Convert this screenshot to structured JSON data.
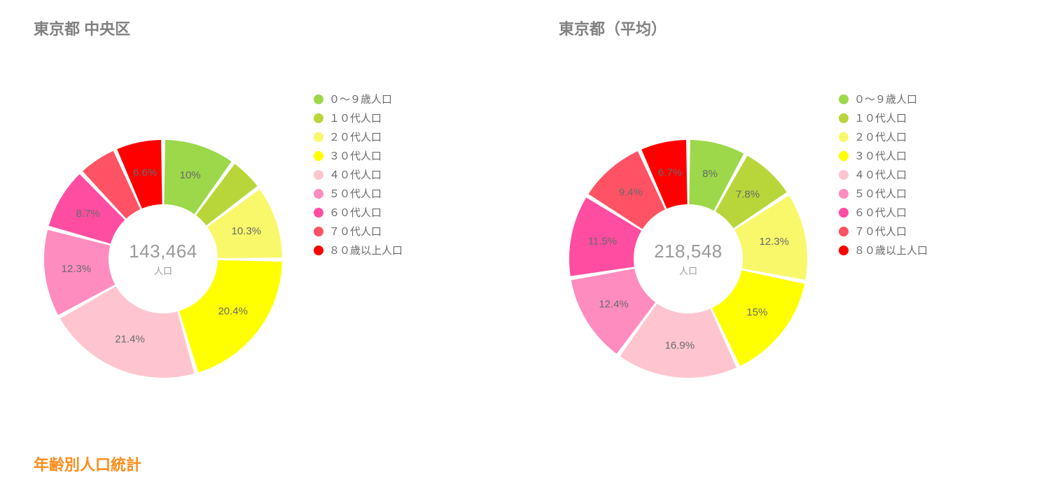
{
  "section_title": "年齢別人口統計",
  "section_title_color": "#ff8c1a",
  "title_color": "#808080",
  "label_color": "#6a6a6a",
  "background_color": "#ffffff",
  "slice_gap_deg": 2.0,
  "legend_items": [
    {
      "label": "０～９歳人口",
      "color": "#9cd84a"
    },
    {
      "label": "１０代人口",
      "color": "#b8d63a"
    },
    {
      "label": "２０代人口",
      "color": "#f8f86a"
    },
    {
      "label": "３０代人口",
      "color": "#ffff00"
    },
    {
      "label": "４０代人口",
      "color": "#ffc5ce"
    },
    {
      "label": "５０代人口",
      "color": "#ff8cbf"
    },
    {
      "label": "６０代人口",
      "color": "#ff4da1"
    },
    {
      "label": "７０代人口",
      "color": "#ff5264"
    },
    {
      "label": "８０歳以上人口",
      "color": "#ff0000"
    }
  ],
  "charts": [
    {
      "id": "left",
      "title": "東京都 中央区",
      "center_value": "143,464",
      "center_sub": "人口",
      "outer_radius": 170,
      "inner_radius": 78,
      "label_radius": 125,
      "slices": [
        {
          "value": 10.0,
          "label": "10%",
          "show_label": true
        },
        {
          "value": 4.8,
          "label": "",
          "show_label": false
        },
        {
          "value": 10.3,
          "label": "10.3%",
          "show_label": true
        },
        {
          "value": 20.4,
          "label": "20.4%",
          "show_label": true
        },
        {
          "value": 21.4,
          "label": "21.4%",
          "show_label": true
        },
        {
          "value": 12.3,
          "label": "12.3%",
          "show_label": true
        },
        {
          "value": 8.7,
          "label": "8.7%",
          "show_label": true
        },
        {
          "value": 5.5,
          "label": "",
          "show_label": false
        },
        {
          "value": 6.6,
          "label": "6.6%",
          "show_label": true
        }
      ]
    },
    {
      "id": "right",
      "title": "東京都（平均）",
      "center_value": "218,548",
      "center_sub": "人口",
      "outer_radius": 170,
      "inner_radius": 78,
      "label_radius": 125,
      "slices": [
        {
          "value": 8.0,
          "label": "8%",
          "show_label": true
        },
        {
          "value": 7.8,
          "label": "7.8%",
          "show_label": true
        },
        {
          "value": 12.3,
          "label": "12.3%",
          "show_label": true
        },
        {
          "value": 15.0,
          "label": "15%",
          "show_label": true
        },
        {
          "value": 16.9,
          "label": "16.9%",
          "show_label": true
        },
        {
          "value": 12.4,
          "label": "12.4%",
          "show_label": true
        },
        {
          "value": 11.5,
          "label": "11.5%",
          "show_label": true
        },
        {
          "value": 9.4,
          "label": "9.4%",
          "show_label": true
        },
        {
          "value": 6.7,
          "label": "6.7%",
          "show_label": true
        }
      ]
    }
  ]
}
